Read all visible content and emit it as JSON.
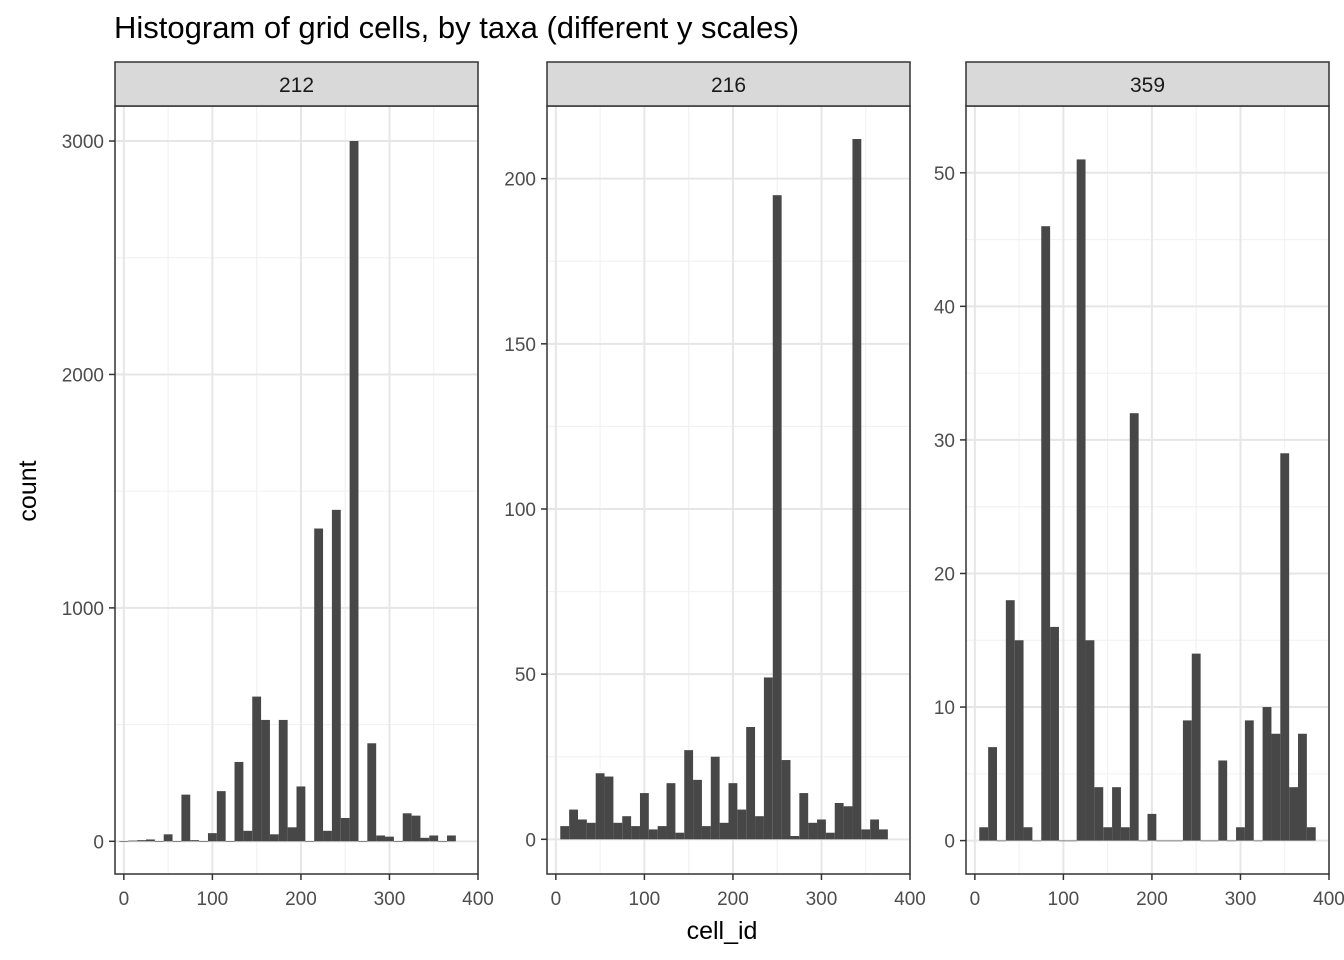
{
  "chart_data": {
    "type": "bar",
    "title": "Histogram of grid cells, by taxa (different y scales)",
    "xlabel": "cell_id",
    "ylabel": "count",
    "xlim": [
      -10,
      400
    ],
    "x_ticks": [
      0,
      100,
      200,
      300,
      400
    ],
    "bin_width": 10,
    "grid": true,
    "bar_color": "#474747",
    "panels": [
      {
        "name": "212",
        "ylim": [
          -140,
          3150
        ],
        "y_ticks": [
          0,
          1000,
          2000,
          3000
        ],
        "bins": [
          [
            0,
            0
          ],
          [
            10,
            3
          ],
          [
            20,
            5
          ],
          [
            30,
            8
          ],
          [
            40,
            0
          ],
          [
            50,
            30
          ],
          [
            60,
            0
          ],
          [
            70,
            200
          ],
          [
            80,
            5
          ],
          [
            90,
            0
          ],
          [
            100,
            35
          ],
          [
            110,
            215
          ],
          [
            120,
            0
          ],
          [
            130,
            340
          ],
          [
            140,
            45
          ],
          [
            150,
            620
          ],
          [
            160,
            520
          ],
          [
            170,
            30
          ],
          [
            180,
            520
          ],
          [
            190,
            60
          ],
          [
            200,
            235
          ],
          [
            210,
            0
          ],
          [
            220,
            1340
          ],
          [
            230,
            45
          ],
          [
            240,
            1420
          ],
          [
            250,
            100
          ],
          [
            260,
            3000
          ],
          [
            270,
            0
          ],
          [
            280,
            420
          ],
          [
            290,
            25
          ],
          [
            300,
            20
          ],
          [
            310,
            0
          ],
          [
            320,
            120
          ],
          [
            330,
            110
          ],
          [
            340,
            15
          ],
          [
            350,
            25
          ],
          [
            360,
            0
          ],
          [
            370,
            25
          ]
        ]
      },
      {
        "name": "216",
        "ylim": [
          -10.5,
          222
        ],
        "y_ticks": [
          0,
          50,
          100,
          150,
          200
        ],
        "bins": [
          [
            10,
            4
          ],
          [
            20,
            9
          ],
          [
            30,
            6
          ],
          [
            40,
            5
          ],
          [
            50,
            20
          ],
          [
            60,
            19
          ],
          [
            70,
            5
          ],
          [
            80,
            7
          ],
          [
            90,
            4
          ],
          [
            100,
            14
          ],
          [
            110,
            3
          ],
          [
            120,
            4
          ],
          [
            130,
            17
          ],
          [
            140,
            2
          ],
          [
            150,
            27
          ],
          [
            160,
            18
          ],
          [
            170,
            4
          ],
          [
            180,
            25
          ],
          [
            190,
            5
          ],
          [
            200,
            17
          ],
          [
            210,
            9
          ],
          [
            220,
            34
          ],
          [
            230,
            7
          ],
          [
            240,
            49
          ],
          [
            250,
            195
          ],
          [
            260,
            24
          ],
          [
            270,
            1
          ],
          [
            280,
            14
          ],
          [
            290,
            5
          ],
          [
            300,
            6
          ],
          [
            310,
            2
          ],
          [
            320,
            11
          ],
          [
            330,
            10
          ],
          [
            340,
            212
          ],
          [
            350,
            3
          ],
          [
            360,
            6
          ],
          [
            370,
            3
          ]
        ]
      },
      {
        "name": "359",
        "ylim": [
          -2.5,
          55
        ],
        "y_ticks": [
          0,
          10,
          20,
          30,
          40,
          50
        ],
        "bins": [
          [
            10,
            1
          ],
          [
            20,
            7
          ],
          [
            30,
            0
          ],
          [
            40,
            18
          ],
          [
            50,
            15
          ],
          [
            60,
            1
          ],
          [
            70,
            0
          ],
          [
            80,
            46
          ],
          [
            90,
            16
          ],
          [
            100,
            0
          ],
          [
            110,
            0
          ],
          [
            120,
            51
          ],
          [
            130,
            15
          ],
          [
            140,
            4
          ],
          [
            150,
            1
          ],
          [
            160,
            4
          ],
          [
            170,
            1
          ],
          [
            180,
            32
          ],
          [
            190,
            0
          ],
          [
            200,
            2
          ],
          [
            210,
            0
          ],
          [
            220,
            0
          ],
          [
            230,
            0
          ],
          [
            240,
            9
          ],
          [
            250,
            14
          ],
          [
            260,
            0
          ],
          [
            270,
            0
          ],
          [
            280,
            6
          ],
          [
            290,
            0
          ],
          [
            300,
            1
          ],
          [
            310,
            9
          ],
          [
            320,
            0
          ],
          [
            330,
            10
          ],
          [
            340,
            8
          ],
          [
            350,
            29
          ],
          [
            360,
            4
          ],
          [
            370,
            8
          ],
          [
            380,
            1
          ]
        ]
      }
    ]
  }
}
